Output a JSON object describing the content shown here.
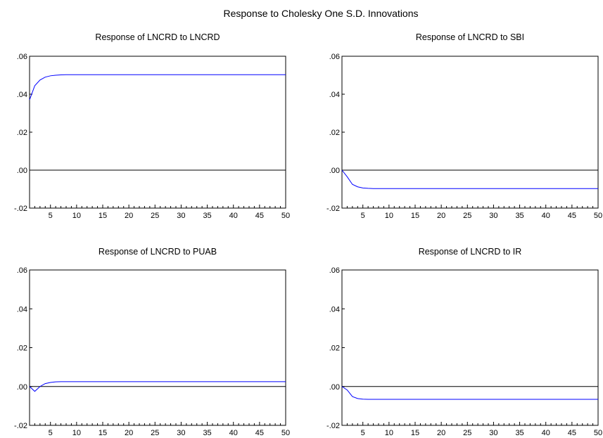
{
  "figure": {
    "title": "Response to Cholesky One S.D. Innovations"
  },
  "colors": {
    "series": "#0000ff",
    "zero_line": "#000000",
    "frame": "#000000",
    "background": "#ffffff"
  },
  "chart_data": [
    {
      "type": "line",
      "title": "Response of LNCRD to LNCRD",
      "xlim": [
        1,
        50
      ],
      "ylim": [
        -0.02,
        0.06
      ],
      "x_ticks": [
        5,
        10,
        15,
        20,
        25,
        30,
        35,
        40,
        45,
        50
      ],
      "y_ticks": [
        -0.02,
        0.0,
        0.02,
        0.04,
        0.06
      ],
      "y_tick_labels": [
        "-.02",
        ".00",
        ".02",
        ".04",
        ".06"
      ],
      "zero_line": true,
      "series": [
        {
          "x": [
            1,
            2,
            3,
            4,
            5,
            6,
            7,
            8,
            10,
            15,
            20,
            30,
            40,
            50
          ],
          "values": [
            0.037,
            0.0445,
            0.0475,
            0.049,
            0.0497,
            0.05,
            0.0502,
            0.0503,
            0.0503,
            0.0503,
            0.0503,
            0.0503,
            0.0503,
            0.0503
          ]
        }
      ]
    },
    {
      "type": "line",
      "title": "Response of LNCRD to SBI",
      "xlim": [
        1,
        50
      ],
      "ylim": [
        -0.02,
        0.06
      ],
      "x_ticks": [
        5,
        10,
        15,
        20,
        25,
        30,
        35,
        40,
        45,
        50
      ],
      "y_ticks": [
        -0.02,
        0.0,
        0.02,
        0.04,
        0.06
      ],
      "y_tick_labels": [
        "-.02",
        ".00",
        ".02",
        ".04",
        ".06"
      ],
      "zero_line": true,
      "series": [
        {
          "x": [
            1,
            2,
            3,
            4,
            5,
            6,
            7,
            8,
            10,
            15,
            20,
            30,
            40,
            50
          ],
          "values": [
            0.0,
            -0.0035,
            -0.0075,
            -0.0088,
            -0.0094,
            -0.0096,
            -0.0097,
            -0.0097,
            -0.0097,
            -0.0097,
            -0.0097,
            -0.0097,
            -0.0097,
            -0.0097
          ]
        }
      ]
    },
    {
      "type": "line",
      "title": "Response of LNCRD to PUAB",
      "xlim": [
        1,
        50
      ],
      "ylim": [
        -0.02,
        0.06
      ],
      "x_ticks": [
        5,
        10,
        15,
        20,
        25,
        30,
        35,
        40,
        45,
        50
      ],
      "y_ticks": [
        -0.02,
        0.0,
        0.02,
        0.04,
        0.06
      ],
      "y_tick_labels": [
        "-.02",
        ".00",
        ".02",
        ".04",
        ".06"
      ],
      "zero_line": true,
      "series": [
        {
          "x": [
            1,
            2,
            3,
            4,
            5,
            6,
            7,
            8,
            10,
            15,
            20,
            30,
            40,
            50
          ],
          "values": [
            0.0,
            -0.0025,
            0.0,
            0.0015,
            0.0021,
            0.0024,
            0.0025,
            0.0025,
            0.0025,
            0.0025,
            0.0025,
            0.0025,
            0.0025,
            0.0025
          ]
        }
      ]
    },
    {
      "type": "line",
      "title": "Response of LNCRD to IR",
      "xlim": [
        1,
        50
      ],
      "ylim": [
        -0.02,
        0.06
      ],
      "x_ticks": [
        5,
        10,
        15,
        20,
        25,
        30,
        35,
        40,
        45,
        50
      ],
      "y_ticks": [
        -0.02,
        0.0,
        0.02,
        0.04,
        0.06
      ],
      "y_tick_labels": [
        "-.02",
        ".00",
        ".02",
        ".04",
        ".06"
      ],
      "zero_line": true,
      "series": [
        {
          "x": [
            1,
            2,
            3,
            4,
            5,
            6,
            7,
            8,
            10,
            15,
            20,
            30,
            40,
            50
          ],
          "values": [
            0.0,
            -0.0018,
            -0.0052,
            -0.0062,
            -0.0065,
            -0.0066,
            -0.0066,
            -0.0066,
            -0.0066,
            -0.0066,
            -0.0066,
            -0.0066,
            -0.0066,
            -0.0066
          ]
        }
      ]
    }
  ]
}
